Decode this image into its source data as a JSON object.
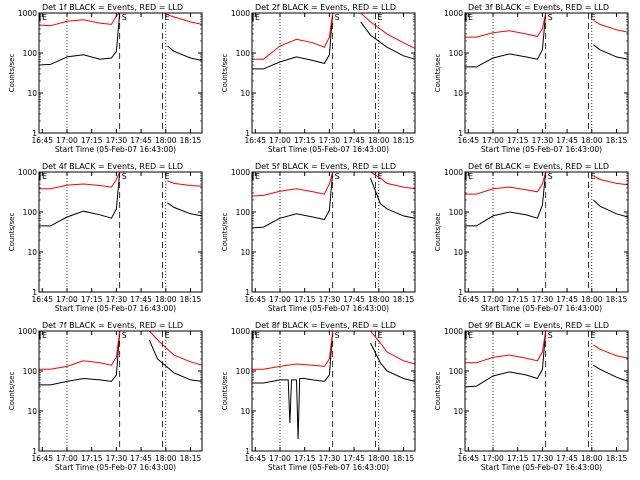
{
  "figure": {
    "style": {
      "background": "#ffffff",
      "axis_color": "#000000",
      "events_color": "#000000",
      "lld_color": "#ff0000"
    },
    "time_ticks": [
      "16:45",
      "17:00",
      "17:15",
      "17:30",
      "17:45",
      "18:00",
      "18:15"
    ],
    "y_ticks": [
      "1",
      "10",
      "100",
      "1000"
    ],
    "ylabel": "Counts/sec",
    "xlabel": "Start Time (05-Feb-07 16:43:00)",
    "marker_start": "S",
    "marker_end": "E"
  },
  "chart_data": [
    {
      "type": "line",
      "title": "Det 1f BLACK = Events, RED = LLD",
      "ylim": [
        1,
        1000
      ],
      "yscale": "log",
      "xlim": [
        "16:43",
        "18:22"
      ],
      "start_marker": "S",
      "end_marker": "E",
      "dotted_lines": [
        "17:00",
        "18:00"
      ],
      "dashed_lines": [
        "17:32",
        "17:58"
      ],
      "gaps": [
        [
          "17:33",
          "18:01"
        ]
      ],
      "series": [
        {
          "name": "Events",
          "color": "#000000",
          "x": [
            "16:43",
            "16:50",
            "17:00",
            "17:10",
            "17:20",
            "17:27",
            "17:30",
            "17:32",
            "18:01",
            "18:05",
            "18:15",
            "18:22"
          ],
          "values": [
            50,
            52,
            80,
            90,
            70,
            75,
            110,
            1100,
            150,
            110,
            75,
            65
          ]
        },
        {
          "name": "LLD",
          "color": "#ff0000",
          "x": [
            "16:43",
            "16:50",
            "17:00",
            "17:10",
            "17:20",
            "17:27",
            "17:30",
            "17:32",
            "18:01",
            "18:05",
            "18:15",
            "18:22"
          ],
          "values": [
            500,
            480,
            620,
            680,
            560,
            520,
            850,
            1100,
            900,
            800,
            600,
            520
          ]
        }
      ]
    },
    {
      "type": "line",
      "title": "Det 2f BLACK = Events, RED = LLD",
      "ylim": [
        1,
        1000
      ],
      "yscale": "log",
      "xlim": [
        "16:43",
        "18:22"
      ],
      "start_marker": "S",
      "end_marker": "E",
      "dotted_lines": [
        "17:00",
        "18:00"
      ],
      "dashed_lines": [
        "17:32",
        "17:58"
      ],
      "gaps": [
        [
          "17:33",
          "17:49"
        ]
      ],
      "series": [
        {
          "name": "Events",
          "color": "#000000",
          "x": [
            "16:43",
            "16:50",
            "17:00",
            "17:10",
            "17:20",
            "17:27",
            "17:30",
            "17:32",
            "17:49",
            "17:55",
            "18:05",
            "18:15",
            "18:22"
          ],
          "values": [
            40,
            40,
            60,
            80,
            65,
            55,
            90,
            1100,
            600,
            280,
            140,
            85,
            70
          ]
        },
        {
          "name": "LLD",
          "color": "#ff0000",
          "x": [
            "16:43",
            "16:50",
            "17:00",
            "17:10",
            "17:20",
            "17:27",
            "17:30",
            "17:32",
            "17:49",
            "17:55",
            "18:05",
            "18:15",
            "18:22"
          ],
          "values": [
            70,
            70,
            150,
            220,
            180,
            140,
            250,
            1100,
            1000,
            600,
            300,
            180,
            130
          ]
        }
      ]
    },
    {
      "type": "line",
      "title": "Det 3f BLACK = Events, RED = LLD",
      "ylim": [
        1,
        1000
      ],
      "yscale": "log",
      "xlim": [
        "16:43",
        "18:22"
      ],
      "start_marker": "S",
      "end_marker": "E",
      "dotted_lines": [
        "17:00",
        "18:00"
      ],
      "dashed_lines": [
        "17:32",
        "17:58"
      ],
      "gaps": [
        [
          "17:33",
          "18:01"
        ]
      ],
      "series": [
        {
          "name": "Events",
          "color": "#000000",
          "x": [
            "16:43",
            "16:50",
            "17:00",
            "17:10",
            "17:20",
            "17:27",
            "17:30",
            "17:32",
            "18:01",
            "18:05",
            "18:15",
            "18:22"
          ],
          "values": [
            45,
            45,
            75,
            95,
            80,
            70,
            120,
            1100,
            160,
            120,
            80,
            70
          ]
        },
        {
          "name": "LLD",
          "color": "#ff0000",
          "x": [
            "16:43",
            "16:50",
            "17:00",
            "17:10",
            "17:20",
            "17:27",
            "17:30",
            "17:32",
            "18:01",
            "18:05",
            "18:15",
            "18:22"
          ],
          "values": [
            250,
            250,
            320,
            360,
            300,
            260,
            400,
            1100,
            650,
            520,
            380,
            330
          ]
        }
      ]
    },
    {
      "type": "line",
      "title": "Det 4f BLACK = Events, RED = LLD",
      "ylim": [
        1,
        1000
      ],
      "yscale": "log",
      "xlim": [
        "16:43",
        "18:22"
      ],
      "start_marker": "S",
      "end_marker": "E",
      "dotted_lines": [
        "17:00",
        "18:00"
      ],
      "dashed_lines": [
        "17:32",
        "17:58"
      ],
      "gaps": [
        [
          "17:33",
          "18:01"
        ]
      ],
      "series": [
        {
          "name": "Events",
          "color": "#000000",
          "x": [
            "16:43",
            "16:50",
            "17:00",
            "17:10",
            "17:20",
            "17:27",
            "17:30",
            "17:32",
            "18:01",
            "18:05",
            "18:15",
            "18:22"
          ],
          "values": [
            45,
            45,
            75,
            105,
            85,
            70,
            120,
            1100,
            170,
            130,
            90,
            80
          ]
        },
        {
          "name": "LLD",
          "color": "#ff0000",
          "x": [
            "16:43",
            "16:50",
            "17:00",
            "17:10",
            "17:20",
            "17:27",
            "17:30",
            "17:32",
            "18:01",
            "18:05",
            "18:15",
            "18:22"
          ],
          "values": [
            380,
            380,
            470,
            500,
            460,
            420,
            650,
            1100,
            600,
            520,
            460,
            440
          ]
        }
      ]
    },
    {
      "type": "line",
      "title": "Det 5f BLACK = Events, RED = LLD",
      "ylim": [
        1,
        1000
      ],
      "yscale": "log",
      "xlim": [
        "16:43",
        "18:22"
      ],
      "start_marker": "S",
      "end_marker": "E",
      "dotted_lines": [
        "17:00",
        "18:00"
      ],
      "dashed_lines": [
        "17:32",
        "17:58"
      ],
      "gaps": [
        [
          "17:33",
          "17:55"
        ]
      ],
      "series": [
        {
          "name": "Events",
          "color": "#000000",
          "x": [
            "16:43",
            "16:50",
            "17:00",
            "17:10",
            "17:20",
            "17:27",
            "17:30",
            "17:32",
            "17:55",
            "18:01",
            "18:05",
            "18:15",
            "18:22"
          ],
          "values": [
            40,
            42,
            70,
            90,
            75,
            65,
            110,
            1100,
            700,
            160,
            120,
            80,
            70
          ]
        },
        {
          "name": "LLD",
          "color": "#ff0000",
          "x": [
            "16:43",
            "16:50",
            "17:00",
            "17:10",
            "17:20",
            "17:27",
            "17:30",
            "17:32",
            "17:55",
            "18:01",
            "18:05",
            "18:15",
            "18:22"
          ],
          "values": [
            250,
            260,
            330,
            380,
            320,
            280,
            500,
            1100,
            1000,
            700,
            520,
            420,
            380
          ]
        }
      ]
    },
    {
      "type": "line",
      "title": "Det 6f BLACK = Events, RED = LLD",
      "ylim": [
        1,
        1000
      ],
      "yscale": "log",
      "xlim": [
        "16:43",
        "18:22"
      ],
      "start_marker": "S",
      "end_marker": "E",
      "dotted_lines": [
        "17:00",
        "18:00"
      ],
      "dashed_lines": [
        "17:32",
        "17:58"
      ],
      "gaps": [
        [
          "17:33",
          "18:01"
        ]
      ],
      "series": [
        {
          "name": "Events",
          "color": "#000000",
          "x": [
            "16:43",
            "16:50",
            "17:00",
            "17:10",
            "17:20",
            "17:27",
            "17:30",
            "17:32",
            "18:01",
            "18:05",
            "18:15",
            "18:22"
          ],
          "values": [
            45,
            45,
            80,
            100,
            85,
            70,
            150,
            1100,
            200,
            140,
            90,
            75
          ]
        },
        {
          "name": "LLD",
          "color": "#ff0000",
          "x": [
            "16:43",
            "16:50",
            "17:00",
            "17:10",
            "17:20",
            "17:27",
            "17:30",
            "17:32",
            "18:01",
            "18:05",
            "18:15",
            "18:22"
          ],
          "values": [
            280,
            280,
            380,
            420,
            360,
            320,
            500,
            1100,
            800,
            650,
            520,
            480
          ]
        }
      ]
    },
    {
      "type": "line",
      "title": "Det 7f BLACK = Events, RED = LLD",
      "ylim": [
        1,
        1000
      ],
      "yscale": "log",
      "xlim": [
        "16:43",
        "18:22"
      ],
      "start_marker": "S",
      "end_marker": "E",
      "dotted_lines": [
        "17:00",
        "18:00"
      ],
      "dashed_lines": [
        "17:32",
        "17:58"
      ],
      "gaps": [
        [
          "17:33",
          "17:50"
        ]
      ],
      "series": [
        {
          "name": "Events",
          "color": "#000000",
          "x": [
            "16:43",
            "16:50",
            "17:00",
            "17:10",
            "17:20",
            "17:27",
            "17:30",
            "17:32",
            "17:50",
            "17:55",
            "18:05",
            "18:15",
            "18:22"
          ],
          "values": [
            45,
            45,
            55,
            65,
            60,
            55,
            80,
            1100,
            600,
            200,
            90,
            60,
            55
          ]
        },
        {
          "name": "LLD",
          "color": "#ff0000",
          "x": [
            "16:43",
            "16:50",
            "17:00",
            "17:10",
            "17:20",
            "17:27",
            "17:30",
            "17:32",
            "17:50",
            "17:55",
            "18:05",
            "18:15",
            "18:22"
          ],
          "values": [
            110,
            110,
            130,
            180,
            160,
            140,
            220,
            1100,
            1000,
            600,
            250,
            170,
            140
          ]
        }
      ]
    },
    {
      "type": "line",
      "title": "Det 8f BLACK = Events, RED = LLD",
      "ylim": [
        1,
        1000
      ],
      "yscale": "log",
      "xlim": [
        "16:43",
        "18:22"
      ],
      "start_marker": "S",
      "end_marker": "E",
      "dotted_lines": [
        "17:00",
        "18:00"
      ],
      "dashed_lines": [
        "17:32",
        "17:58"
      ],
      "gaps": [
        [
          "17:33",
          "17:55"
        ]
      ],
      "series": [
        {
          "name": "Events",
          "color": "#000000",
          "x": [
            "16:43",
            "16:50",
            "17:00",
            "17:05",
            "17:06",
            "17:07",
            "17:10",
            "17:11",
            "17:12",
            "17:15",
            "17:20",
            "17:27",
            "17:30",
            "17:32",
            "17:55",
            "18:01",
            "18:05",
            "18:15",
            "18:22"
          ],
          "values": [
            50,
            50,
            60,
            60,
            5,
            60,
            60,
            2,
            65,
            65,
            60,
            55,
            80,
            1100,
            500,
            160,
            100,
            65,
            55
          ]
        },
        {
          "name": "LLD",
          "color": "#ff0000",
          "x": [
            "16:43",
            "16:50",
            "17:00",
            "17:10",
            "17:20",
            "17:27",
            "17:30",
            "17:32",
            "17:55",
            "18:01",
            "18:05",
            "18:15",
            "18:22"
          ],
          "values": [
            110,
            110,
            130,
            150,
            140,
            130,
            200,
            1100,
            1000,
            500,
            300,
            180,
            150
          ]
        }
      ]
    },
    {
      "type": "line",
      "title": "Det 9f BLACK = Events, RED = LLD",
      "ylim": [
        1,
        1000
      ],
      "yscale": "log",
      "xlim": [
        "16:43",
        "18:22"
      ],
      "start_marker": "S",
      "end_marker": "E",
      "dotted_lines": [
        "17:00",
        "18:00"
      ],
      "dashed_lines": [
        "17:32",
        "17:58"
      ],
      "gaps": [
        [
          "17:33",
          "18:01"
        ]
      ],
      "series": [
        {
          "name": "Events",
          "color": "#000000",
          "x": [
            "16:43",
            "16:50",
            "17:00",
            "17:10",
            "17:20",
            "17:27",
            "17:30",
            "17:32",
            "18:01",
            "18:05",
            "18:15",
            "18:22"
          ],
          "values": [
            40,
            42,
            75,
            95,
            80,
            65,
            110,
            1100,
            140,
            110,
            70,
            55
          ]
        },
        {
          "name": "LLD",
          "color": "#ff0000",
          "x": [
            "16:43",
            "16:50",
            "17:00",
            "17:10",
            "17:20",
            "17:27",
            "17:30",
            "17:32",
            "18:01",
            "18:05",
            "18:15",
            "18:22"
          ],
          "values": [
            160,
            160,
            220,
            250,
            210,
            180,
            300,
            1100,
            450,
            350,
            240,
            210
          ]
        }
      ]
    }
  ]
}
